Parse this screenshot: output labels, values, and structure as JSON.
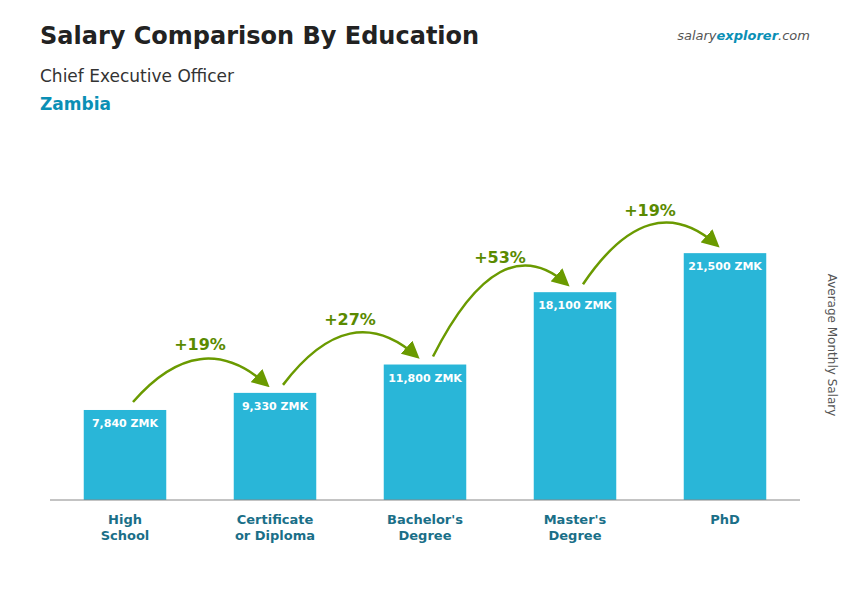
{
  "chart_data": {
    "type": "bar",
    "title": "Salary Comparison By Education",
    "subtitle": "Chief Executive Officer",
    "country": "Zambia",
    "watermark": [
      "salary",
      "explorer",
      ".com"
    ],
    "ylabel": "Average Monthly Salary",
    "categories": [
      "High\nSchool",
      "Certificate\nor Diploma",
      "Bachelor's\nDegree",
      "Master's\nDegree",
      "PhD"
    ],
    "values": [
      7840,
      9330,
      11800,
      18100,
      21500
    ],
    "value_labels": [
      "7,840 ZMK",
      "9,330 ZMK",
      "11,800 ZMK",
      "18,100 ZMK",
      "21,500 ZMK"
    ],
    "annotations": [
      "+19%",
      "+27%",
      "+53%",
      "+19%"
    ],
    "color": "#29b6d8",
    "ylim": [
      0,
      27000
    ],
    "tick_labels": "x"
  }
}
